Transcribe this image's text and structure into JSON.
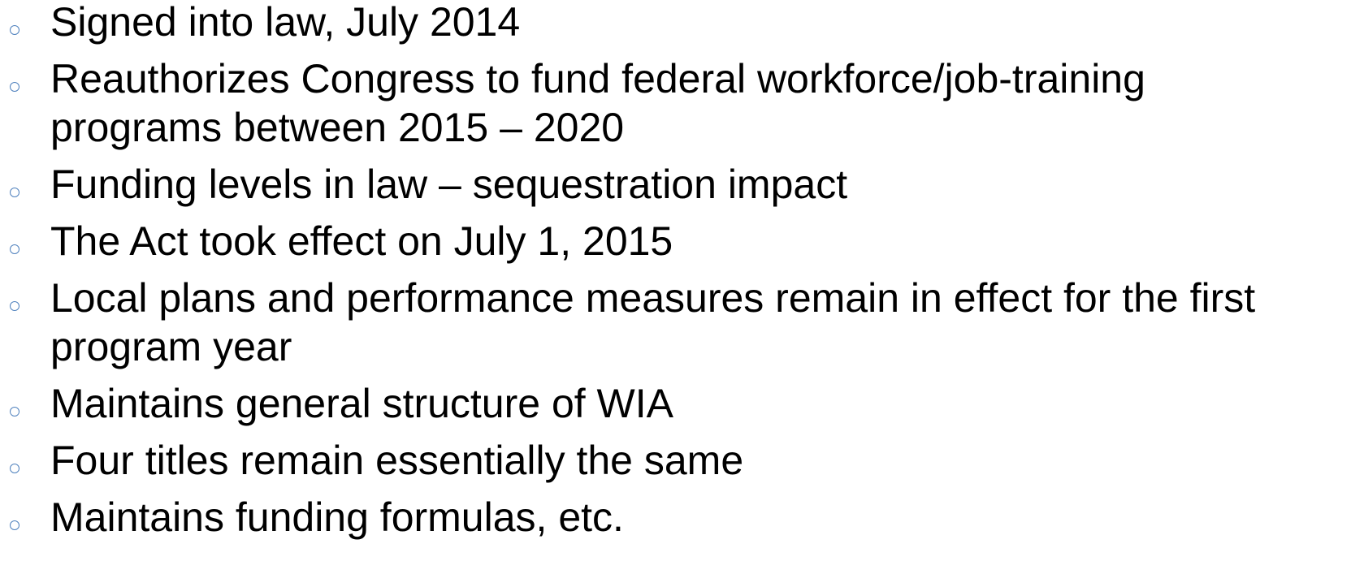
{
  "list": {
    "items": [
      "Signed into law, July 2014",
      "Reauthorizes Congress to fund federal workforce/job-training programs between 2015 – 2020",
      "Funding levels in law – sequestration impact",
      "The Act took effect on July 1, 2015",
      "Local plans and performance measures remain in effect for the first program year",
      "Maintains general structure of WIA",
      "Four titles remain essentially the same",
      "Maintains funding formulas, etc."
    ]
  }
}
